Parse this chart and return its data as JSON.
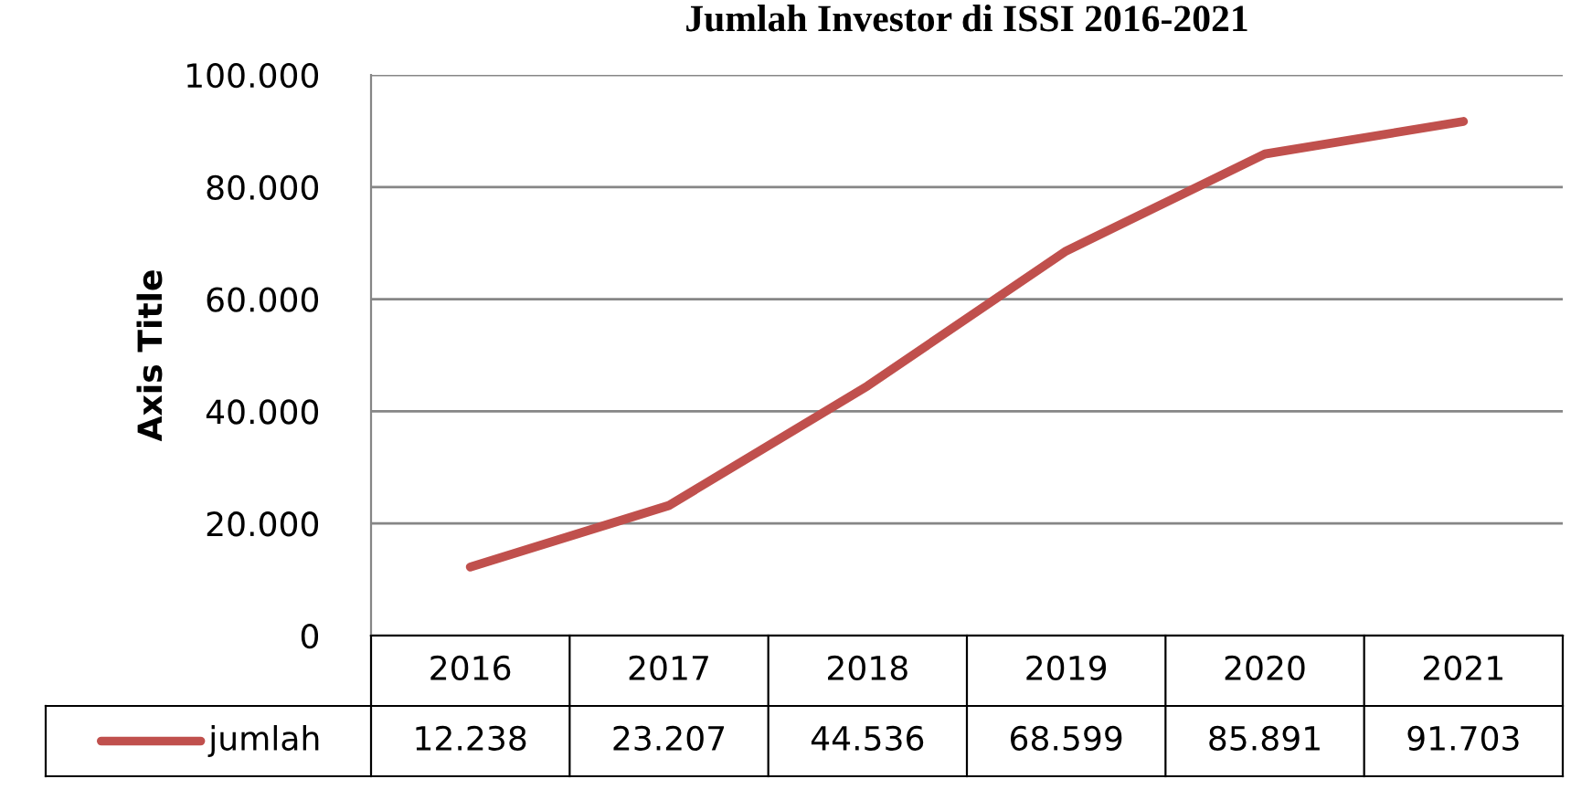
{
  "chart_data": {
    "type": "line",
    "title": "Jumlah Investor di ISSI 2016-2021",
    "ylabel": "Axis Title",
    "categories": [
      "2016",
      "2017",
      "2018",
      "2019",
      "2020",
      "2021"
    ],
    "series": [
      {
        "name": "jumlah",
        "color": "#c0504d",
        "values": [
          12238,
          23207,
          44536,
          68599,
          85891,
          91703
        ],
        "value_labels": [
          "12.238",
          "23.207",
          "44.536",
          "68.599",
          "85.891",
          "91.703"
        ]
      }
    ],
    "ylim": [
      0,
      100000
    ],
    "yticks": [
      {
        "value": 0,
        "label": "0"
      },
      {
        "value": 20000,
        "label": "20.000"
      },
      {
        "value": 40000,
        "label": "40.000"
      },
      {
        "value": 60000,
        "label": "60.000"
      },
      {
        "value": 80000,
        "label": "80.000"
      },
      {
        "value": 100000,
        "label": "100.000"
      }
    ],
    "grid": "y",
    "legend": "bottom",
    "marker": "none",
    "line_style": "solid"
  }
}
